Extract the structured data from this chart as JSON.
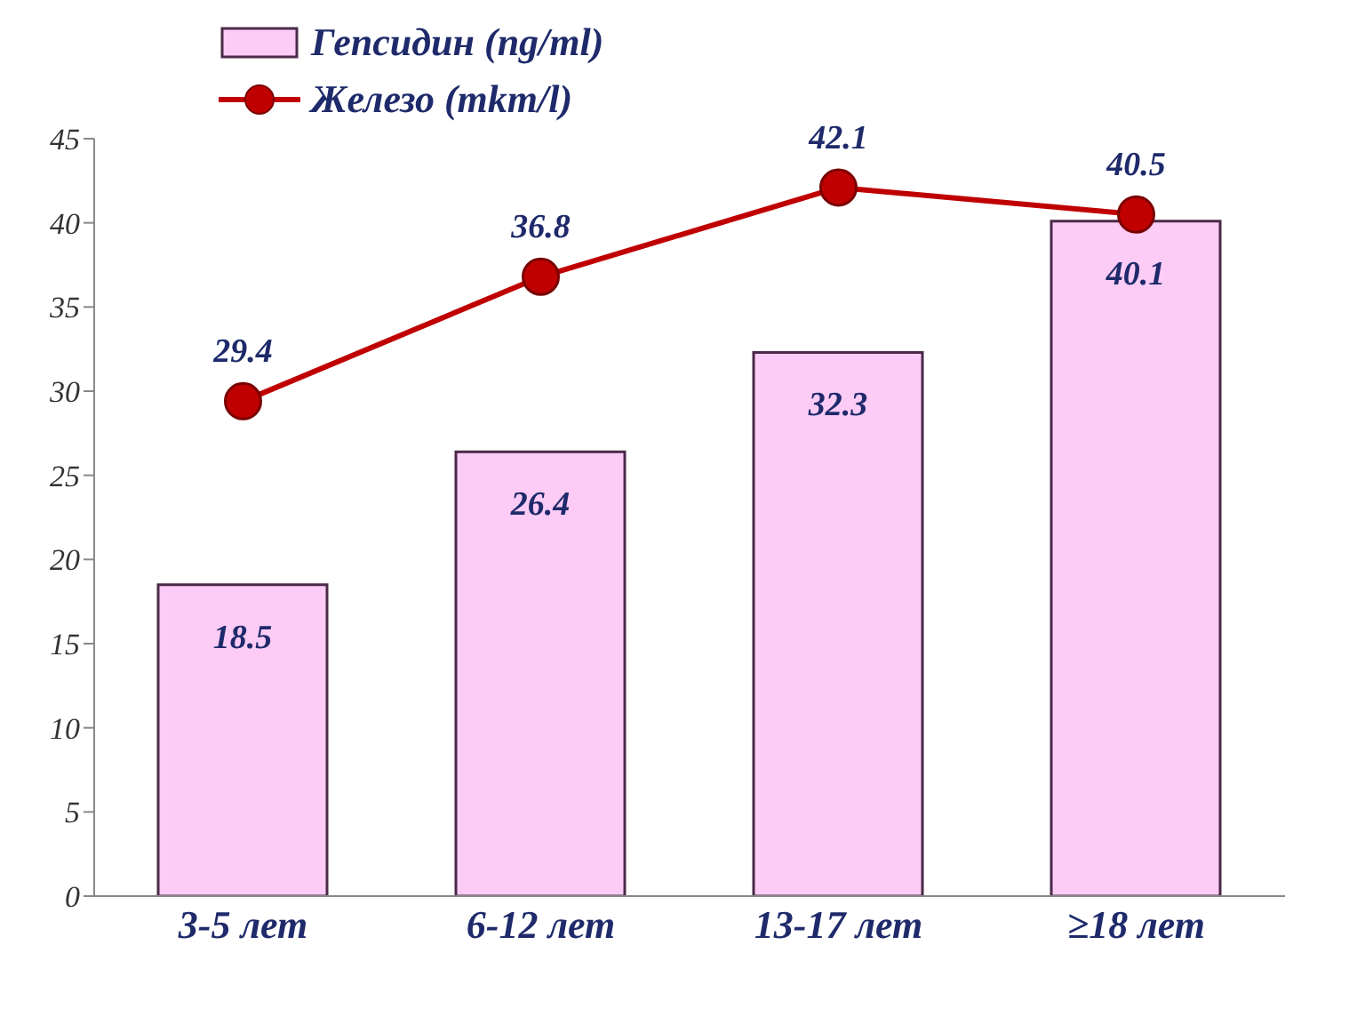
{
  "chart_data": {
    "type": "bar",
    "categories": [
      "3-5 лет",
      "6-12 лет",
      "13-17 лет",
      "≥18 лет"
    ],
    "series": [
      {
        "name": "Гепсидин (ng/ml)",
        "color": "#fcccf6",
        "values": [
          18.5,
          26.4,
          32.3,
          40.1
        ]
      },
      {
        "name": "Железо (mkm/l)",
        "type": "line",
        "color": "#c00000",
        "values": [
          29.4,
          36.8,
          42.1,
          40.5
        ]
      }
    ],
    "ylim": [
      0,
      45
    ],
    "yticks": [
      0,
      5,
      10,
      15,
      20,
      25,
      30,
      35,
      40,
      45
    ],
    "grid": false,
    "legend": "top left",
    "marker": "circle",
    "line_style": "solid",
    "data_labels": true
  }
}
